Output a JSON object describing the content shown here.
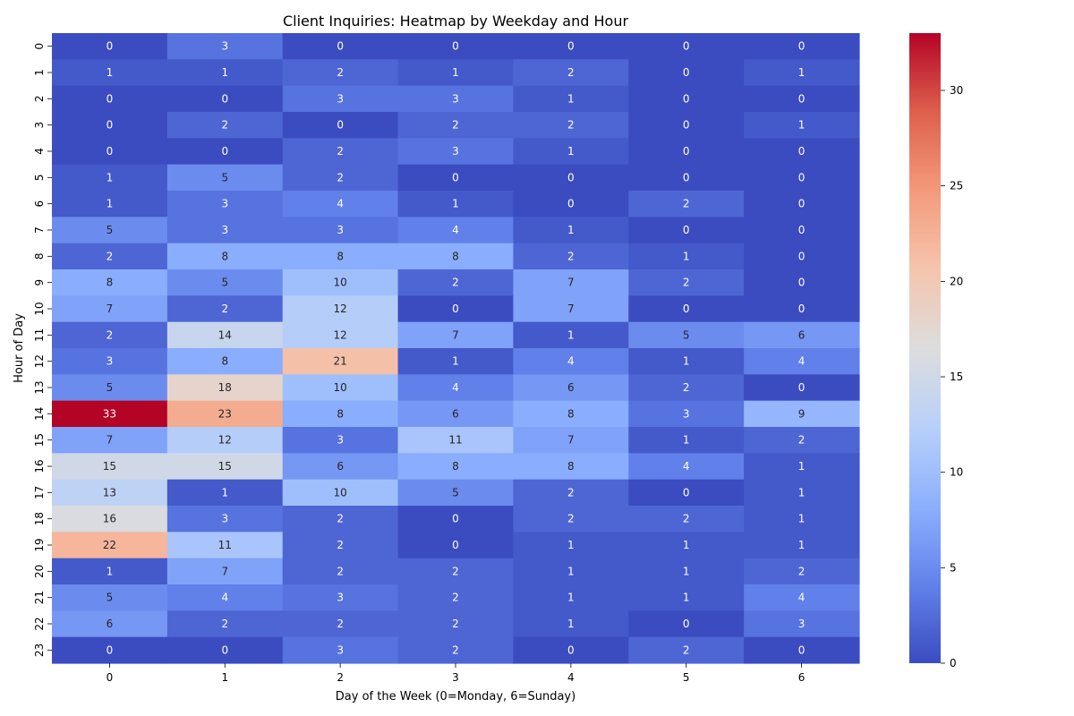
{
  "chart_data": {
    "type": "heatmap",
    "title": "Client Inquiries: Heatmap by Weekday and Hour",
    "xlabel": "Day of the Week (0=Monday, 6=Sunday)",
    "ylabel": "Hour of Day",
    "x_ticks": [
      "0",
      "1",
      "2",
      "3",
      "4",
      "5",
      "6"
    ],
    "y_ticks": [
      "0",
      "1",
      "2",
      "3",
      "4",
      "5",
      "6",
      "7",
      "8",
      "9",
      "10",
      "11",
      "12",
      "13",
      "14",
      "15",
      "16",
      "17",
      "18",
      "19",
      "20",
      "21",
      "22",
      "23"
    ],
    "values": [
      [
        0,
        3,
        0,
        0,
        0,
        0,
        0
      ],
      [
        1,
        1,
        2,
        1,
        2,
        0,
        1
      ],
      [
        0,
        0,
        3,
        3,
        1,
        0,
        0
      ],
      [
        0,
        2,
        0,
        2,
        2,
        0,
        1
      ],
      [
        0,
        0,
        2,
        3,
        1,
        0,
        0
      ],
      [
        1,
        5,
        2,
        0,
        0,
        0,
        0
      ],
      [
        1,
        3,
        4,
        1,
        0,
        2,
        0
      ],
      [
        5,
        3,
        3,
        4,
        1,
        0,
        0
      ],
      [
        2,
        8,
        8,
        8,
        2,
        1,
        0
      ],
      [
        8,
        5,
        10,
        2,
        7,
        2,
        0
      ],
      [
        7,
        2,
        12,
        0,
        7,
        0,
        0
      ],
      [
        2,
        14,
        12,
        7,
        1,
        5,
        6
      ],
      [
        3,
        8,
        21,
        1,
        4,
        1,
        4
      ],
      [
        5,
        18,
        10,
        4,
        6,
        2,
        0
      ],
      [
        33,
        23,
        8,
        6,
        8,
        3,
        9
      ],
      [
        7,
        12,
        3,
        11,
        7,
        1,
        2
      ],
      [
        15,
        15,
        6,
        8,
        8,
        4,
        1
      ],
      [
        13,
        1,
        10,
        5,
        2,
        0,
        1
      ],
      [
        16,
        3,
        2,
        0,
        2,
        2,
        1
      ],
      [
        22,
        11,
        2,
        0,
        1,
        1,
        1
      ],
      [
        1,
        7,
        2,
        2,
        1,
        1,
        2
      ],
      [
        5,
        4,
        3,
        2,
        1,
        1,
        4
      ],
      [
        6,
        2,
        2,
        2,
        1,
        0,
        3
      ],
      [
        0,
        0,
        3,
        2,
        0,
        2,
        0
      ]
    ],
    "vmin": 0,
    "vmax": 33,
    "colormap": "coolwarm",
    "colorbar_ticks": [
      "0",
      "5",
      "10",
      "15",
      "20",
      "25",
      "30"
    ],
    "grid": false,
    "legend": "colorbar-right"
  }
}
